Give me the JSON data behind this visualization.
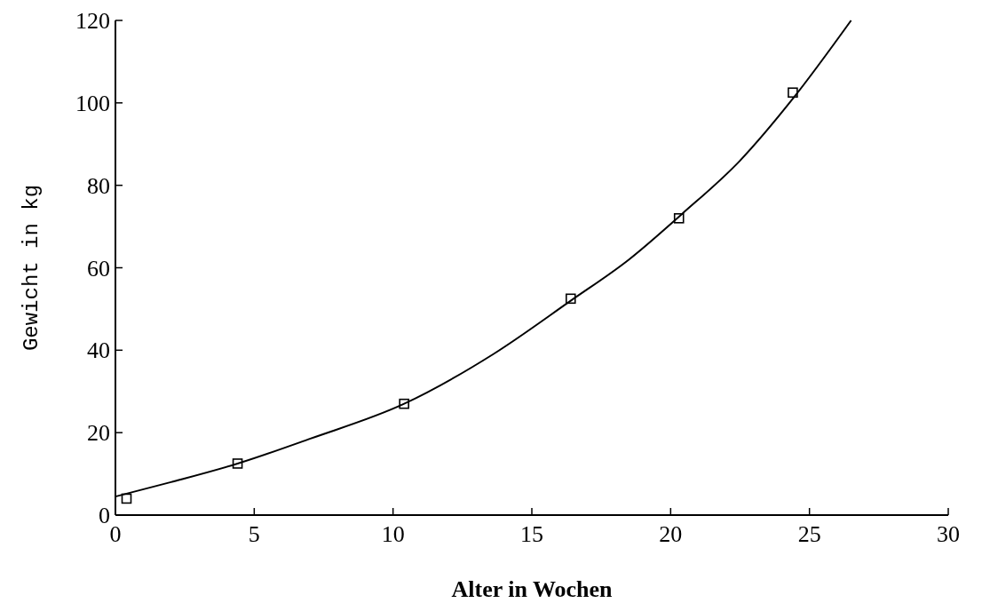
{
  "chart_data": {
    "type": "scatter",
    "xlabel": "Alter in Wochen",
    "ylabel": "Gewicht in kg",
    "xlim": [
      0,
      30
    ],
    "ylim": [
      0,
      120
    ],
    "xticks": [
      0,
      5,
      10,
      15,
      20,
      25,
      30
    ],
    "yticks": [
      0,
      20,
      40,
      60,
      80,
      100,
      120
    ],
    "grid": false,
    "series": [
      {
        "marker": "square",
        "color": "#000000",
        "x": [
          0.4,
          4.4,
          10.4,
          16.4,
          20.3,
          24.4
        ],
        "values": [
          4,
          12.5,
          27,
          52.5,
          72,
          102.5
        ]
      },
      {
        "type": "line",
        "line_style": "solid",
        "color": "#000000",
        "x": [
          0,
          2,
          4.4,
          7,
          10.4,
          13.6,
          16.4,
          18.5,
          20.4,
          22.5,
          24.4,
          26.5
        ],
        "values": [
          4.5,
          8,
          12.5,
          18.5,
          27,
          39,
          52,
          62,
          73,
          86,
          101,
          120
        ]
      }
    ]
  }
}
